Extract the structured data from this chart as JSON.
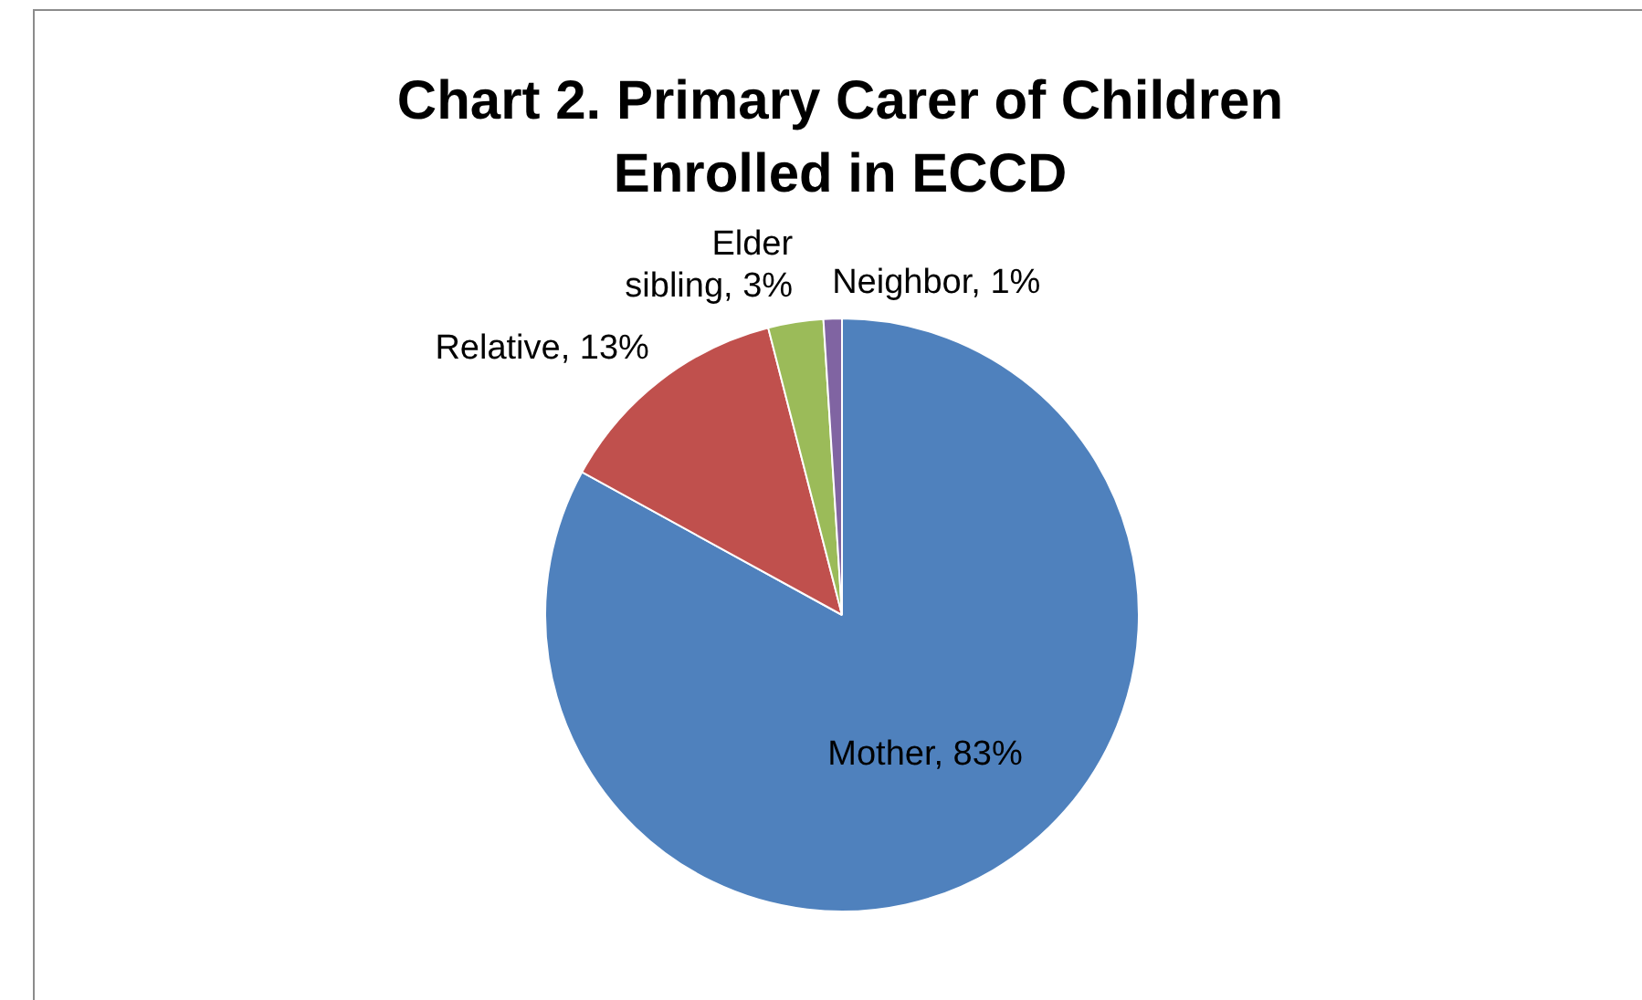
{
  "chart_data": {
    "type": "pie",
    "title": "Chart 2. Primary Carer of Children Enrolled in ECCD",
    "categories": [
      "Mother",
      "Relative",
      "Elder sibling",
      "Neighbor"
    ],
    "values": [
      83,
      13,
      3,
      1
    ],
    "colors": [
      "#4f81bd",
      "#c0504d",
      "#9bbb59",
      "#8064a2"
    ],
    "value_labels": [
      "83%",
      "13%",
      "3%",
      "1%"
    ]
  }
}
